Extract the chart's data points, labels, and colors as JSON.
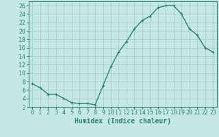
{
  "x": [
    0,
    1,
    2,
    3,
    4,
    5,
    6,
    7,
    8,
    9,
    10,
    11,
    12,
    13,
    14,
    15,
    16,
    17,
    18,
    19,
    20,
    21,
    22,
    23
  ],
  "y": [
    7.5,
    6.5,
    5.0,
    5.0,
    4.0,
    3.0,
    2.8,
    2.8,
    2.5,
    7.0,
    11.5,
    15.0,
    17.5,
    20.5,
    22.5,
    23.5,
    25.5,
    26.0,
    26.0,
    24.0,
    20.5,
    19.0,
    16.0,
    15.0
  ],
  "line_color": "#2e7d6e",
  "marker": "+",
  "marker_size": 3.5,
  "bg_color": "#c5e8e5",
  "grid_color": "#aacfcc",
  "xlabel": "Humidex (Indice chaleur)",
  "xlim": [
    -0.5,
    23.5
  ],
  "ylim": [
    2,
    27
  ],
  "yticks": [
    2,
    4,
    6,
    8,
    10,
    12,
    14,
    16,
    18,
    20,
    22,
    24,
    26
  ],
  "xticks": [
    0,
    1,
    2,
    3,
    4,
    5,
    6,
    7,
    8,
    9,
    10,
    11,
    12,
    13,
    14,
    15,
    16,
    17,
    18,
    19,
    20,
    21,
    22,
    23
  ],
  "tick_color": "#2e7d6e",
  "xlabel_fontsize": 7,
  "tick_fontsize": 6,
  "line_width": 1.0
}
